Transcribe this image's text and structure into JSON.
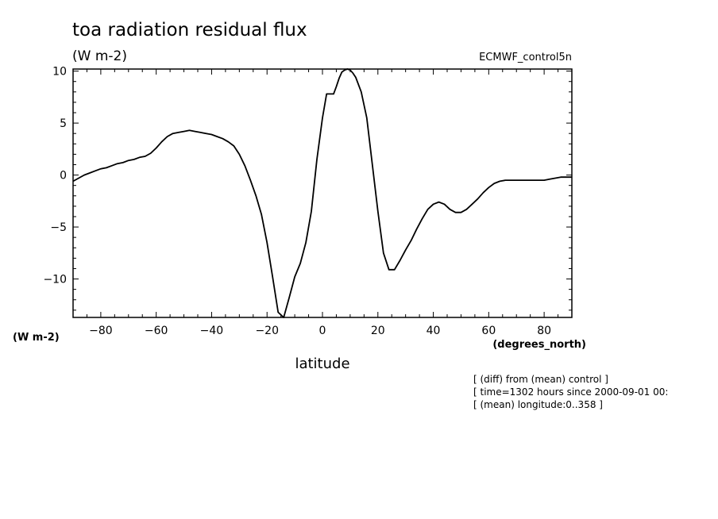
{
  "chart_data": {
    "type": "line",
    "title": "toa radiation residual flux",
    "subtitle": "(W m-2)",
    "dataset_label": "ECMWF_control5n",
    "ylabel_units": "(W m-2)",
    "xlabel": "latitude",
    "xlabel_units": "(degrees_north)",
    "xlim": [
      -90,
      90
    ],
    "ylim": [
      -13.7,
      10.2
    ],
    "xticks": [
      -80,
      -60,
      -40,
      -20,
      0,
      20,
      40,
      60,
      80
    ],
    "yticks": [
      10,
      5,
      0,
      -5,
      -10
    ],
    "grid": false,
    "series": [
      {
        "x": [
          -90,
          -88,
          -86,
          -84,
          -82,
          -80,
          -78,
          -76,
          -74,
          -72,
          -70,
          -68,
          -66,
          -64,
          -62,
          -60,
          -58,
          -56,
          -54,
          -52,
          -50,
          -48,
          -46,
          -44,
          -42,
          -40,
          -38,
          -36,
          -34,
          -32,
          -30,
          -28,
          -26,
          -24,
          -22,
          -20,
          -18,
          -16,
          -14,
          -12,
          -10,
          -8,
          -6,
          -4,
          -2,
          0,
          1.5,
          2.5,
          4,
          5,
          6,
          7,
          8,
          9,
          10,
          11,
          12,
          14,
          16,
          18,
          20,
          22,
          24,
          26,
          28,
          30,
          32,
          34,
          36,
          38,
          40,
          42,
          44,
          46,
          48,
          50,
          52,
          54,
          56,
          58,
          60,
          62,
          64,
          66,
          68,
          70,
          72,
          74,
          76,
          78,
          80,
          82,
          84,
          86,
          88,
          90
        ],
        "y": [
          -0.6,
          -0.3,
          0.0,
          0.2,
          0.4,
          0.6,
          0.7,
          0.9,
          1.1,
          1.2,
          1.4,
          1.5,
          1.7,
          1.8,
          2.1,
          2.6,
          3.2,
          3.7,
          4.0,
          4.1,
          4.2,
          4.3,
          4.2,
          4.1,
          4.0,
          3.9,
          3.7,
          3.5,
          3.2,
          2.8,
          2.0,
          0.9,
          -0.5,
          -2.0,
          -3.8,
          -6.5,
          -9.8,
          -13.2,
          -13.7,
          -11.8,
          -9.8,
          -8.5,
          -6.5,
          -3.5,
          1.5,
          5.5,
          7.8,
          7.8,
          7.8,
          8.5,
          9.3,
          9.9,
          10.1,
          10.2,
          10.1,
          9.8,
          9.4,
          8.0,
          5.5,
          1.0,
          -3.5,
          -7.5,
          -9.1,
          -9.1,
          -8.2,
          -7.2,
          -6.3,
          -5.2,
          -4.2,
          -3.3,
          -2.8,
          -2.6,
          -2.8,
          -3.3,
          -3.6,
          -3.6,
          -3.3,
          -2.8,
          -2.3,
          -1.7,
          -1.2,
          -0.8,
          -0.6,
          -0.5,
          -0.5,
          -0.5,
          -0.5,
          -0.5,
          -0.5,
          -0.5,
          -0.5,
          -0.4,
          -0.3,
          -0.2,
          -0.2,
          -0.2
        ]
      }
    ]
  },
  "footnotes": [
    "[ (diff) from (mean) control ]",
    "[ time=1302 hours since 2000-09-01 00:",
    "[ (mean) longitude:0..358 ]"
  ]
}
